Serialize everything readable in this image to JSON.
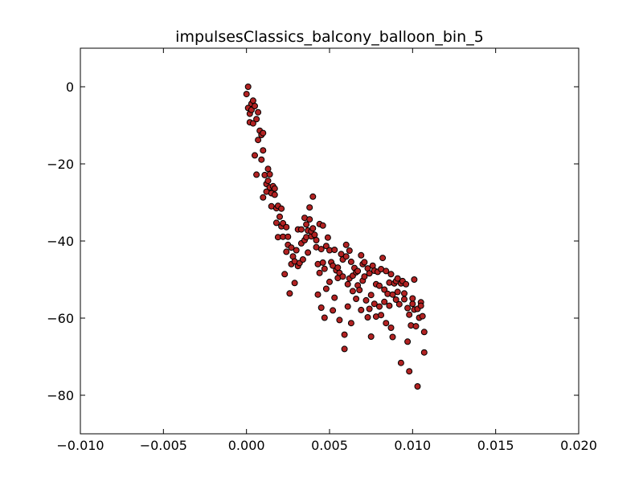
{
  "chart_data": {
    "type": "scatter",
    "title": "impulsesClassics_balcony_balloon_bin_5",
    "xlabel": "",
    "ylabel": "",
    "xlim": [
      -0.01,
      0.02
    ],
    "ylim": [
      -90,
      10
    ],
    "x_ticks": [
      -0.01,
      -0.005,
      0.0,
      0.005,
      0.01,
      0.015,
      0.02
    ],
    "x_tick_labels": [
      "−0.010",
      "−0.005",
      "0.000",
      "0.005",
      "0.010",
      "0.015",
      "0.020"
    ],
    "y_ticks": [
      0,
      -20,
      -40,
      -60,
      -80
    ],
    "y_tick_labels": [
      "0",
      "−20",
      "−40",
      "−60",
      "−80"
    ],
    "grid": false,
    "marker_color": "#b22222",
    "marker_edge_color": "#000000",
    "points": [
      [
        0.0,
        -1.9
      ],
      [
        0.0001,
        0.0
      ],
      [
        0.0001,
        -5.5
      ],
      [
        0.0002,
        -7.0
      ],
      [
        0.0002,
        -9.2
      ],
      [
        0.0003,
        -4.4
      ],
      [
        0.0003,
        -6.0
      ],
      [
        0.0004,
        -3.6
      ],
      [
        0.0004,
        -9.5
      ],
      [
        0.0005,
        -5.0
      ],
      [
        0.0005,
        -17.8
      ],
      [
        0.0006,
        -8.4
      ],
      [
        0.0006,
        -22.8
      ],
      [
        0.0007,
        -13.8
      ],
      [
        0.0007,
        -6.6
      ],
      [
        0.0008,
        -11.4
      ],
      [
        0.0009,
        -12.5
      ],
      [
        0.0009,
        -18.9
      ],
      [
        0.001,
        -12.0
      ],
      [
        0.001,
        -16.5
      ],
      [
        0.001,
        -28.7
      ],
      [
        0.0011,
        -22.9
      ],
      [
        0.0012,
        -25.2
      ],
      [
        0.0012,
        -27.2
      ],
      [
        0.0013,
        -21.3
      ],
      [
        0.0013,
        -24.4
      ],
      [
        0.0014,
        -26.1
      ],
      [
        0.0014,
        -22.7
      ],
      [
        0.0015,
        -31.0
      ],
      [
        0.0015,
        -27.6
      ],
      [
        0.0016,
        -25.8
      ],
      [
        0.0017,
        -28.0
      ],
      [
        0.0017,
        -26.4
      ],
      [
        0.0018,
        -31.5
      ],
      [
        0.0018,
        -35.3
      ],
      [
        0.0019,
        -30.9
      ],
      [
        0.0019,
        -39.0
      ],
      [
        0.002,
        -33.7
      ],
      [
        0.0021,
        -31.6
      ],
      [
        0.0021,
        -36.2
      ],
      [
        0.0022,
        -35.4
      ],
      [
        0.0022,
        -38.9
      ],
      [
        0.0023,
        -48.6
      ],
      [
        0.0024,
        -36.4
      ],
      [
        0.0024,
        -42.8
      ],
      [
        0.0025,
        -38.9
      ],
      [
        0.0025,
        -41.0
      ],
      [
        0.0026,
        -53.6
      ],
      [
        0.0027,
        -41.7
      ],
      [
        0.0027,
        -46.0
      ],
      [
        0.0028,
        -44.0
      ],
      [
        0.0029,
        -50.9
      ],
      [
        0.0029,
        -45.3
      ],
      [
        0.003,
        -42.4
      ],
      [
        0.0031,
        -37.0
      ],
      [
        0.0031,
        -46.5
      ],
      [
        0.0032,
        -45.7
      ],
      [
        0.0033,
        -37.0
      ],
      [
        0.0033,
        -40.6
      ],
      [
        0.0034,
        -44.8
      ],
      [
        0.0035,
        -39.8
      ],
      [
        0.0035,
        -34.0
      ],
      [
        0.0036,
        -39.0
      ],
      [
        0.0036,
        -35.7
      ],
      [
        0.0037,
        -37.3
      ],
      [
        0.0037,
        -43.0
      ],
      [
        0.0038,
        -34.4
      ],
      [
        0.0038,
        -31.3
      ],
      [
        0.0039,
        -38.8
      ],
      [
        0.0039,
        -37.5
      ],
      [
        0.004,
        -36.7
      ],
      [
        0.004,
        -28.5
      ],
      [
        0.0041,
        -38.4
      ],
      [
        0.0042,
        -39.8
      ],
      [
        0.0042,
        -41.6
      ],
      [
        0.0043,
        -46.0
      ],
      [
        0.0043,
        -53.9
      ],
      [
        0.0044,
        -35.6
      ],
      [
        0.0044,
        -48.3
      ],
      [
        0.0045,
        -42.1
      ],
      [
        0.0045,
        -57.3
      ],
      [
        0.0046,
        -36.0
      ],
      [
        0.0046,
        -45.6
      ],
      [
        0.0047,
        -47.2
      ],
      [
        0.0047,
        -59.9
      ],
      [
        0.0048,
        -41.3
      ],
      [
        0.0048,
        -52.4
      ],
      [
        0.0049,
        -39.1
      ],
      [
        0.005,
        -42.4
      ],
      [
        0.005,
        -50.6
      ],
      [
        0.0051,
        -45.5
      ],
      [
        0.0052,
        -46.4
      ],
      [
        0.0052,
        -58.0
      ],
      [
        0.0053,
        -42.3
      ],
      [
        0.0053,
        -54.7
      ],
      [
        0.0054,
        -47.6
      ],
      [
        0.0055,
        -49.6
      ],
      [
        0.0055,
        -46.9
      ],
      [
        0.0056,
        -48.3
      ],
      [
        0.0056,
        -60.5
      ],
      [
        0.0057,
        -43.4
      ],
      [
        0.0058,
        -44.8
      ],
      [
        0.0058,
        -49.2
      ],
      [
        0.0059,
        -68.0
      ],
      [
        0.0059,
        -64.3
      ],
      [
        0.006,
        -41.0
      ],
      [
        0.006,
        -44.0
      ],
      [
        0.0061,
        -51.2
      ],
      [
        0.0061,
        -57.0
      ],
      [
        0.0062,
        -42.5
      ],
      [
        0.0062,
        -49.7
      ],
      [
        0.0063,
        -45.4
      ],
      [
        0.0063,
        -61.3
      ],
      [
        0.0064,
        -49.0
      ],
      [
        0.0064,
        -53.0
      ],
      [
        0.0065,
        -47.0
      ],
      [
        0.0066,
        -48.1
      ],
      [
        0.0066,
        -55.0
      ],
      [
        0.0067,
        -47.8
      ],
      [
        0.0067,
        -51.5
      ],
      [
        0.0068,
        -52.7
      ],
      [
        0.0069,
        -43.7
      ],
      [
        0.0069,
        -57.9
      ],
      [
        0.007,
        -46.0
      ],
      [
        0.007,
        -50.3
      ],
      [
        0.0071,
        -49.2
      ],
      [
        0.0071,
        -45.5
      ],
      [
        0.0072,
        -55.4
      ],
      [
        0.0073,
        -47.1
      ],
      [
        0.0073,
        -59.8
      ],
      [
        0.0074,
        -48.4
      ],
      [
        0.0074,
        -57.6
      ],
      [
        0.0075,
        -54.0
      ],
      [
        0.0075,
        -64.8
      ],
      [
        0.0076,
        -46.4
      ],
      [
        0.0077,
        -47.7
      ],
      [
        0.0077,
        -56.3
      ],
      [
        0.0078,
        -51.2
      ],
      [
        0.0078,
        -59.6
      ],
      [
        0.0079,
        -48.0
      ],
      [
        0.008,
        -51.6
      ],
      [
        0.008,
        -57.0
      ],
      [
        0.0081,
        -47.3
      ],
      [
        0.0081,
        -59.2
      ],
      [
        0.0082,
        -44.4
      ],
      [
        0.0083,
        -52.6
      ],
      [
        0.0083,
        -55.8
      ],
      [
        0.0084,
        -47.8
      ],
      [
        0.0084,
        -61.3
      ],
      [
        0.0085,
        -53.7
      ],
      [
        0.0086,
        -50.8
      ],
      [
        0.0086,
        -56.8
      ],
      [
        0.0087,
        -62.5
      ],
      [
        0.0087,
        -48.6
      ],
      [
        0.0088,
        -53.9
      ],
      [
        0.0088,
        -64.9
      ],
      [
        0.0089,
        -51.0
      ],
      [
        0.009,
        -55.2
      ],
      [
        0.009,
        -50.4
      ],
      [
        0.0091,
        -53.2
      ],
      [
        0.0091,
        -49.7
      ],
      [
        0.0092,
        -56.4
      ],
      [
        0.0093,
        -71.6
      ],
      [
        0.0093,
        -51.0
      ],
      [
        0.0094,
        -50.4
      ],
      [
        0.0095,
        -53.6
      ],
      [
        0.0095,
        -55.1
      ],
      [
        0.0096,
        -51.2
      ],
      [
        0.0097,
        -57.4
      ],
      [
        0.0097,
        -66.1
      ],
      [
        0.0098,
        -59.1
      ],
      [
        0.0098,
        -73.8
      ],
      [
        0.0099,
        -61.9
      ],
      [
        0.01,
        -56.3
      ],
      [
        0.01,
        -54.9
      ],
      [
        0.0101,
        -57.8
      ],
      [
        0.0101,
        -50.0
      ],
      [
        0.0102,
        -62.1
      ],
      [
        0.0103,
        -57.6
      ],
      [
        0.0103,
        -77.7
      ],
      [
        0.0104,
        -59.9
      ],
      [
        0.0105,
        -55.9
      ],
      [
        0.0105,
        -56.8
      ],
      [
        0.0106,
        -59.5
      ],
      [
        0.0107,
        -63.6
      ],
      [
        0.0107,
        -68.9
      ]
    ]
  }
}
